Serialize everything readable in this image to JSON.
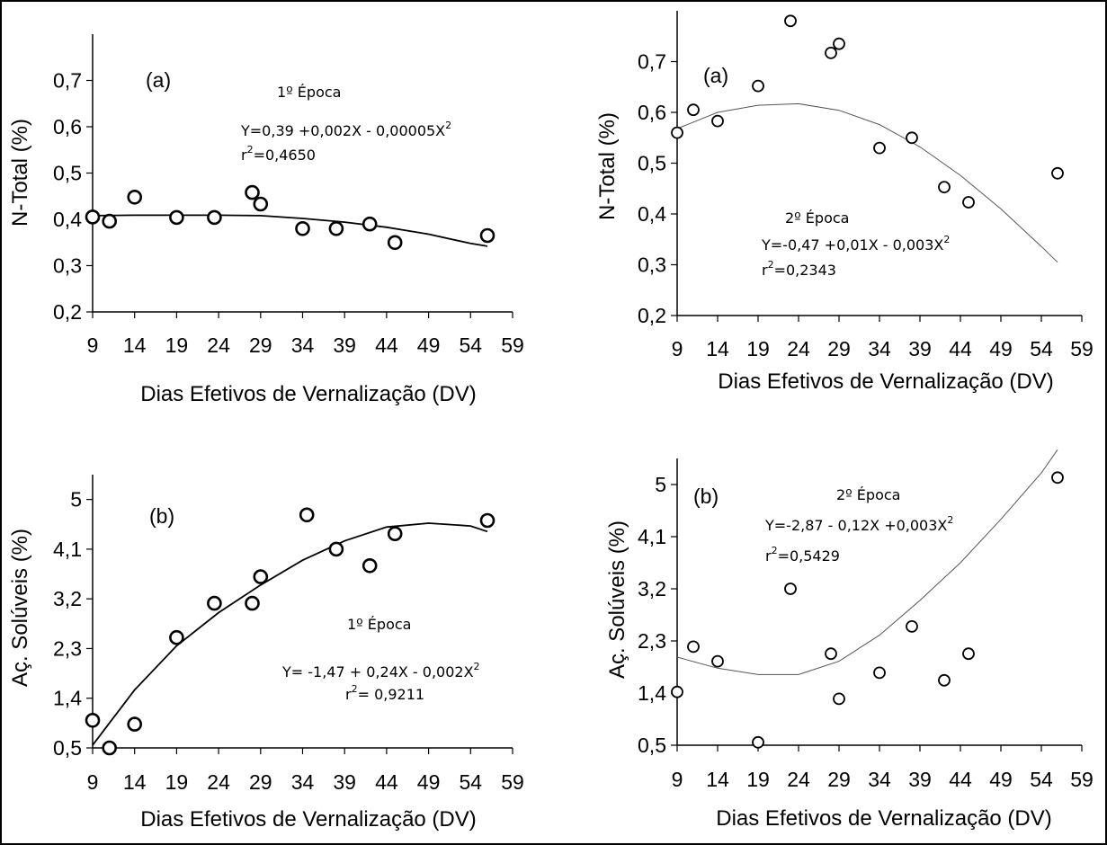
{
  "chart_data": [
    {
      "type": "scatter",
      "panel_tag": "(a)",
      "season_label": "1º Época",
      "equation": "Y=0,39 +0,002X - 0,00005X",
      "equation_exp": "2",
      "r2_prefix": "r",
      "r2_exp": "2",
      "r2_value": "=0,4650",
      "ylabel": "N-Total (%)",
      "xlabel": "Dias Efetivos de Vernalização (DV)",
      "xlim": [
        9,
        59
      ],
      "ylim": [
        0.2,
        0.8
      ],
      "xticks": [
        "9",
        "14",
        "19",
        "24",
        "29",
        "34",
        "39",
        "44",
        "49",
        "54",
        "59"
      ],
      "yticks": [
        "0,2",
        "0,3",
        "0,4",
        "0,5",
        "0,6",
        "0,7"
      ],
      "marker": "circle-bold",
      "points": [
        {
          "x": 9,
          "y": 0.405
        },
        {
          "x": 11,
          "y": 0.396
        },
        {
          "x": 14,
          "y": 0.448
        },
        {
          "x": 19,
          "y": 0.404
        },
        {
          "x": 23.5,
          "y": 0.404
        },
        {
          "x": 28,
          "y": 0.458
        },
        {
          "x": 29,
          "y": 0.433
        },
        {
          "x": 34,
          "y": 0.38
        },
        {
          "x": 38,
          "y": 0.38
        },
        {
          "x": 42,
          "y": 0.39
        },
        {
          "x": 45,
          "y": 0.35
        },
        {
          "x": 56,
          "y": 0.365
        }
      ],
      "trend": {
        "x": [
          9,
          14,
          19,
          24,
          29,
          34,
          39,
          44,
          49,
          54,
          56
        ],
        "y": [
          0.408,
          0.409,
          0.409,
          0.409,
          0.408,
          0.402,
          0.394,
          0.383,
          0.368,
          0.348,
          0.342
        ]
      }
    },
    {
      "type": "scatter",
      "panel_tag": "(a)",
      "season_label": "2º Época",
      "equation": "Y=-0,47 +0,01X - 0,003X",
      "equation_exp": "2",
      "r2_prefix": "r",
      "r2_exp": "2",
      "r2_value": "=0,2343",
      "ylabel": "N-Total (%)",
      "xlabel": "Dias Efetivos de Vernalização (DV)",
      "xlim": [
        9,
        59
      ],
      "ylim": [
        0.2,
        0.8
      ],
      "xticks": [
        "9",
        "14",
        "19",
        "24",
        "29",
        "34",
        "39",
        "44",
        "49",
        "54",
        "59"
      ],
      "yticks": [
        "0,2",
        "0,3",
        "0,4",
        "0,5",
        "0,6",
        "0,7"
      ],
      "marker": "circle-thin",
      "points": [
        {
          "x": 9,
          "y": 0.56
        },
        {
          "x": 11,
          "y": 0.605
        },
        {
          "x": 14,
          "y": 0.583
        },
        {
          "x": 19,
          "y": 0.652
        },
        {
          "x": 23,
          "y": 0.78
        },
        {
          "x": 28,
          "y": 0.717
        },
        {
          "x": 29,
          "y": 0.735
        },
        {
          "x": 34,
          "y": 0.53
        },
        {
          "x": 38,
          "y": 0.55
        },
        {
          "x": 42,
          "y": 0.453
        },
        {
          "x": 45,
          "y": 0.423
        },
        {
          "x": 56,
          "y": 0.48
        }
      ],
      "trend": {
        "x": [
          9,
          14,
          19,
          24,
          29,
          34,
          39,
          44,
          49,
          54,
          56
        ],
        "y": [
          0.568,
          0.6,
          0.614,
          0.617,
          0.604,
          0.576,
          0.532,
          0.476,
          0.41,
          0.336,
          0.305
        ]
      }
    },
    {
      "type": "scatter",
      "panel_tag": "(b)",
      "season_label": "1º Época",
      "equation": "Y= -1,47 + 0,24X - 0,002X",
      "equation_exp": "2",
      "r2_prefix": "r",
      "r2_exp": "2",
      "r2_value": "= 0,9211",
      "ylabel": "Aç. Solúveis (%)",
      "xlabel": "Dias Efetivos de Vernalização (DV)",
      "xlim": [
        9,
        59
      ],
      "ylim": [
        0.5,
        5.45
      ],
      "xticks": [
        "9",
        "14",
        "19",
        "24",
        "29",
        "34",
        "39",
        "44",
        "49",
        "54",
        "59"
      ],
      "yticks": [
        "0,5",
        "1,4",
        "2,3",
        "3,2",
        "4,1",
        "5"
      ],
      "marker": "circle-bold",
      "points": [
        {
          "x": 9,
          "y": 1.0
        },
        {
          "x": 11,
          "y": 0.5
        },
        {
          "x": 14,
          "y": 0.93
        },
        {
          "x": 19,
          "y": 2.5
        },
        {
          "x": 23.5,
          "y": 3.12
        },
        {
          "x": 28,
          "y": 3.12
        },
        {
          "x": 29,
          "y": 3.6
        },
        {
          "x": 34.5,
          "y": 4.72
        },
        {
          "x": 38,
          "y": 4.1
        },
        {
          "x": 42,
          "y": 3.8
        },
        {
          "x": 45,
          "y": 4.38
        },
        {
          "x": 56,
          "y": 4.62
        }
      ],
      "trend": {
        "x": [
          9,
          14,
          19,
          24,
          29,
          34,
          39,
          44,
          49,
          54,
          56
        ],
        "y": [
          0.55,
          1.55,
          2.35,
          2.95,
          3.45,
          3.9,
          4.25,
          4.5,
          4.57,
          4.52,
          4.42
        ]
      }
    },
    {
      "type": "scatter",
      "panel_tag": "(b)",
      "season_label": "2º Época",
      "equation": "Y=-2,87 - 0,12X +0,003X",
      "equation_exp": "2",
      "r2_prefix": "r",
      "r2_exp": "2",
      "r2_value": "=0,5429",
      "ylabel": "Aç. Solúveis (%)",
      "xlabel": "Dias Efetivos de Vernalização (DV)",
      "xlim": [
        9,
        59
      ],
      "ylim": [
        0.5,
        5.45
      ],
      "xticks": [
        "9",
        "14",
        "19",
        "24",
        "29",
        "34",
        "39",
        "44",
        "49",
        "54",
        "59"
      ],
      "yticks": [
        "0,5",
        "1,4",
        "2,3",
        "3,2",
        "4,1",
        "5"
      ],
      "marker": "circle-thin",
      "points": [
        {
          "x": 9,
          "y": 1.42
        },
        {
          "x": 11,
          "y": 2.2
        },
        {
          "x": 14,
          "y": 1.95
        },
        {
          "x": 19,
          "y": 0.55
        },
        {
          "x": 23,
          "y": 3.2
        },
        {
          "x": 28,
          "y": 2.08
        },
        {
          "x": 29,
          "y": 1.3
        },
        {
          "x": 34,
          "y": 1.75
        },
        {
          "x": 38,
          "y": 2.55
        },
        {
          "x": 42,
          "y": 1.62
        },
        {
          "x": 45,
          "y": 2.08
        },
        {
          "x": 56,
          "y": 5.12
        }
      ],
      "trend": {
        "x": [
          9,
          14,
          19,
          24,
          29,
          34,
          39,
          44,
          49,
          54,
          56
        ],
        "y": [
          2.02,
          1.83,
          1.72,
          1.72,
          1.95,
          2.4,
          3.0,
          3.65,
          4.4,
          5.2,
          5.6
        ]
      }
    }
  ]
}
